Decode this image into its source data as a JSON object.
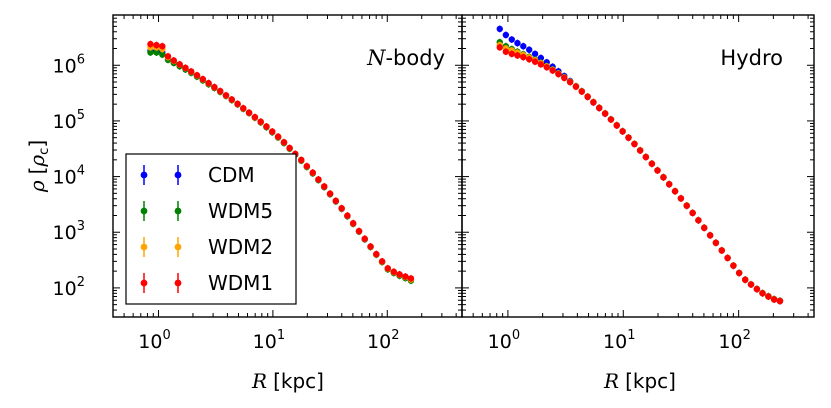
{
  "figure": {
    "ylabel_symbol": "ρ",
    "ylabel_unit_open": "[",
    "ylabel_unit_symbol": "ρ",
    "ylabel_unit_sub": "c",
    "ylabel_unit_close": "]",
    "xlabel_symbol": "R",
    "xlabel_unit": "[kpc]"
  },
  "legend": {
    "entries": [
      {
        "label": "CDM",
        "color": "#0000ff"
      },
      {
        "label": "WDM5",
        "color": "#008000"
      },
      {
        "label": "WDM2",
        "color": "#ffa500"
      },
      {
        "label": "WDM1",
        "color": "#ff0000"
      }
    ]
  },
  "chart_data": [
    {
      "type": "scatter",
      "panel": "N-body",
      "title": "N-body",
      "title_prefix": "N",
      "title_suffix": "-body",
      "xscale": "log",
      "yscale": "log",
      "xlim": [
        0.4,
        450
      ],
      "ylim": [
        30,
        8000000
      ],
      "xticks": [
        {
          "v": 1,
          "base": "10",
          "exp": "0"
        },
        {
          "v": 10,
          "base": "10",
          "exp": "1"
        },
        {
          "v": 100,
          "base": "10",
          "exp": "2"
        }
      ],
      "yticks": [
        {
          "v": 100,
          "base": "10",
          "exp": "2"
        },
        {
          "v": 1000,
          "base": "10",
          "exp": "3"
        },
        {
          "v": 10000,
          "base": "10",
          "exp": "4"
        },
        {
          "v": 100000,
          "base": "10",
          "exp": "5"
        },
        {
          "v": 1000000,
          "base": "10",
          "exp": "6"
        }
      ],
      "r": [
        0.85,
        0.96,
        1.08,
        1.21,
        1.36,
        1.53,
        1.72,
        1.93,
        2.17,
        2.44,
        2.74,
        3.08,
        3.46,
        3.89,
        4.37,
        4.91,
        5.51,
        6.19,
        6.96,
        7.82,
        8.78,
        9.87,
        11.1,
        12.5,
        14.0,
        15.7,
        17.7,
        19.8,
        22.3,
        25.0,
        28.1,
        31.6,
        35.5,
        39.9,
        44.8,
        50.3,
        56.6,
        63.5,
        71.4,
        80.2,
        90.1,
        101,
        114,
        128,
        144,
        161
      ],
      "series": [
        {
          "name": "CDM",
          "color": "#0000ff",
          "values": [
            1800000,
            1800000,
            1700000,
            1300000,
            1150000,
            1000000,
            880000,
            760000,
            650000,
            550000,
            470000,
            400000,
            340000,
            285000,
            240000,
            200000,
            167000,
            139000,
            115000,
            95000,
            78000,
            63000,
            51000,
            40500,
            32000,
            25000,
            19500,
            15000,
            11500,
            8700,
            6500,
            4850,
            3600,
            2650,
            1950,
            1420,
            1030,
            750,
            545,
            400,
            295,
            220,
            190,
            170,
            155,
            140
          ]
        },
        {
          "name": "WDM5",
          "color": "#008000",
          "values": [
            1700000,
            1700000,
            1550000,
            1250000,
            1100000,
            960000,
            840000,
            730000,
            625000,
            535000,
            455000,
            390000,
            332000,
            280000,
            236000,
            198000,
            165000,
            138000,
            114000,
            94000,
            77000,
            62500,
            50500,
            40000,
            31700,
            24800,
            19300,
            14900,
            11400,
            8650,
            6480,
            4820,
            3580,
            2640,
            1940,
            1415,
            1025,
            745,
            540,
            395,
            290,
            215,
            185,
            165,
            150,
            135
          ]
        },
        {
          "name": "WDM2",
          "color": "#ffa500",
          "values": [
            2100000,
            2100000,
            1950000,
            1400000,
            1200000,
            1030000,
            890000,
            765000,
            655000,
            558000,
            474000,
            402000,
            341000,
            286000,
            241000,
            201000,
            168000,
            140000,
            116000,
            96000,
            79000,
            64000,
            51800,
            41200,
            32500,
            25400,
            19800,
            15300,
            11700,
            8850,
            6620,
            4920,
            3650,
            2690,
            1980,
            1440,
            1045,
            760,
            550,
            402,
            296,
            222,
            192,
            172,
            157,
            142
          ]
        },
        {
          "name": "WDM1",
          "color": "#ff0000",
          "values": [
            2400000,
            2300000,
            2200000,
            1450000,
            1220000,
            1040000,
            900000,
            775000,
            662000,
            564000,
            478000,
            405000,
            344000,
            289000,
            243000,
            203000,
            169000,
            141000,
            117000,
            97000,
            79500,
            64500,
            52200,
            41500,
            32700,
            25600,
            19900,
            15400,
            11800,
            8900,
            6650,
            4950,
            3670,
            2700,
            1990,
            1450,
            1050,
            765,
            555,
            405,
            300,
            225,
            195,
            175,
            160,
            148
          ]
        }
      ]
    },
    {
      "type": "scatter",
      "panel": "Hydro",
      "title": "Hydro",
      "xscale": "log",
      "yscale": "log",
      "xlim": [
        0.4,
        450
      ],
      "ylim": [
        30,
        8000000
      ],
      "xticks": [
        {
          "v": 1,
          "base": "10",
          "exp": "0"
        },
        {
          "v": 10,
          "base": "10",
          "exp": "1"
        },
        {
          "v": 100,
          "base": "10",
          "exp": "2"
        }
      ],
      "r": [
        0.85,
        0.96,
        1.08,
        1.21,
        1.36,
        1.53,
        1.72,
        1.93,
        2.17,
        2.44,
        2.74,
        3.08,
        3.46,
        3.89,
        4.37,
        4.91,
        5.51,
        6.19,
        6.96,
        7.82,
        8.78,
        9.87,
        11.1,
        12.5,
        14.0,
        15.7,
        17.7,
        19.8,
        22.3,
        25.0,
        28.1,
        31.6,
        35.5,
        39.9,
        44.8,
        50.3,
        56.6,
        63.5,
        71.4,
        80.2,
        90.1,
        101,
        114,
        128,
        144,
        161,
        181,
        203,
        228
      ],
      "series": [
        {
          "name": "CDM",
          "color": "#0000ff",
          "values": [
            4500000,
            3500000,
            2900000,
            2500000,
            2200000,
            1900000,
            1600000,
            1350000,
            1130000,
            940000,
            780000,
            640000,
            520000,
            420000,
            340000,
            270000,
            215000,
            170000,
            135000,
            106000,
            83000,
            65000,
            50000,
            38500,
            29500,
            22500,
            17000,
            12900,
            9700,
            7300,
            5450,
            4050,
            3000,
            2220,
            1640,
            1200,
            880,
            645,
            470,
            345,
            250,
            185,
            140,
            115,
            95,
            80,
            70,
            62,
            58
          ]
        },
        {
          "name": "WDM5",
          "color": "#008000",
          "values": [
            2600000,
            2200000,
            1950000,
            1750000,
            1580000,
            1420000,
            1260000,
            1110000,
            970000,
            840000,
            720000,
            610000,
            510000,
            420000,
            342000,
            275000,
            219000,
            173000,
            137000,
            107000,
            84000,
            65500,
            50500,
            38800,
            29700,
            22600,
            17100,
            12950,
            9750,
            7320,
            5470,
            4070,
            3010,
            2230,
            1645,
            1205,
            882,
            647,
            472,
            346,
            252,
            186,
            141,
            116,
            96,
            81,
            71,
            63,
            59
          ]
        },
        {
          "name": "WDM2",
          "color": "#ffa500",
          "values": [
            2300000,
            2000000,
            1850000,
            1680000,
            1530000,
            1380000,
            1230000,
            1090000,
            955000,
            830000,
            712000,
            604000,
            505000,
            418000,
            341000,
            274000,
            218000,
            172000,
            136000,
            106000,
            83500,
            65000,
            50200,
            38600,
            29600,
            22500,
            17050,
            12920,
            9720,
            7310,
            5460,
            4060,
            3005,
            2225,
            1642,
            1202,
            880,
            646,
            471,
            345,
            251,
            185,
            140,
            115,
            95,
            80,
            70,
            62,
            58
          ]
        },
        {
          "name": "WDM1",
          "color": "#ff0000",
          "values": [
            2100000,
            1750000,
            1600000,
            1500000,
            1400000,
            1280000,
            1160000,
            1040000,
            920000,
            805000,
            695000,
            592000,
            497000,
            412000,
            337000,
            271000,
            216000,
            171000,
            135500,
            106000,
            83000,
            64800,
            50000,
            38400,
            29400,
            22400,
            17000,
            12880,
            9690,
            7290,
            5450,
            4050,
            3000,
            2220,
            1640,
            1200,
            880,
            646,
            471,
            345,
            251,
            185,
            140,
            115,
            95,
            80,
            70,
            62,
            58
          ]
        }
      ]
    }
  ]
}
